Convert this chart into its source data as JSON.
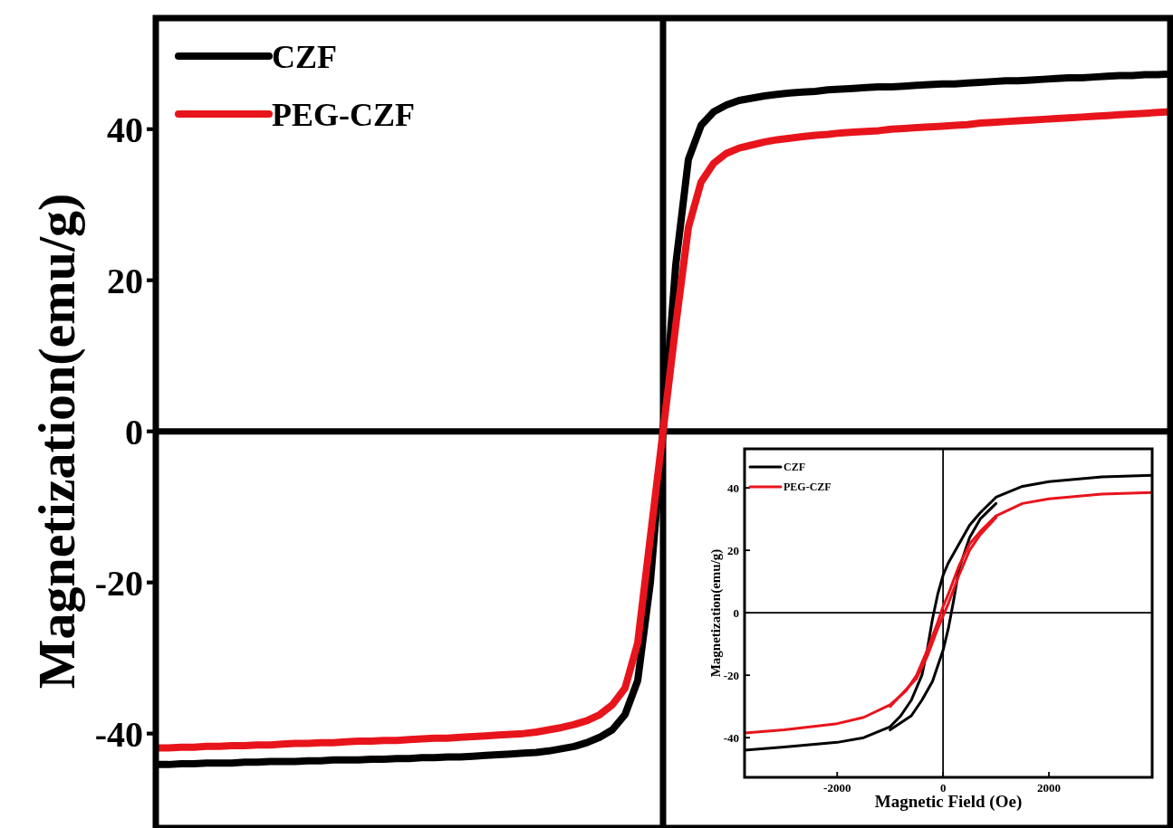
{
  "chart_data": [
    {
      "type": "line",
      "ylabel": "Magnetization(emu/g)",
      "categories": [
        null,
        null,
        null,
        null,
        null,
        null,
        null,
        null,
        null,
        null,
        null,
        null,
        null,
        null,
        null,
        null,
        null,
        null,
        null,
        null,
        null,
        null,
        null,
        null,
        null,
        null,
        null,
        null,
        null,
        null,
        null,
        null,
        null,
        null,
        null,
        null,
        null,
        null,
        null,
        null,
        null,
        null,
        null,
        null,
        null,
        null,
        null,
        null,
        null,
        null,
        null,
        null,
        null,
        null,
        null,
        null,
        null,
        null,
        null,
        null,
        null,
        null,
        null,
        null,
        null,
        null,
        null,
        null,
        null,
        null,
        null,
        null,
        null,
        null,
        null,
        null,
        null,
        null,
        null,
        null,
        null
      ],
      "series": [
        {
          "name": "CZF",
          "color": "#000000",
          "values": [
            -44.1,
            -44.1,
            -44.0,
            -44.0,
            -43.9,
            -43.9,
            -43.9,
            -43.8,
            -43.8,
            -43.7,
            -43.7,
            -43.7,
            -43.6,
            -43.6,
            -43.5,
            -43.5,
            -43.5,
            -43.4,
            -43.4,
            -43.3,
            -43.3,
            -43.2,
            -43.2,
            -43.1,
            -43.1,
            -43.0,
            -42.9,
            -42.8,
            -42.7,
            -42.6,
            -42.5,
            -42.3,
            -42.0,
            -41.7,
            -41.2,
            -40.5,
            -39.5,
            -37.5,
            -33,
            -20,
            0,
            22,
            36,
            40.5,
            42.3,
            43.2,
            43.8,
            44.1,
            44.4,
            44.6,
            44.8,
            44.9,
            45.0,
            45.2,
            45.3,
            45.4,
            45.5,
            45.6,
            45.6,
            45.7,
            45.8,
            45.9,
            46.0,
            46.0,
            46.1,
            46.2,
            46.3,
            46.4,
            46.4,
            46.5,
            46.6,
            46.7,
            46.8,
            46.8,
            46.9,
            47.0,
            47.1,
            47.1,
            47.2,
            47.2,
            47.3
          ]
        },
        {
          "name": "PEG-CZF",
          "color": "#e8141c",
          "values": [
            -41.9,
            -41.9,
            -41.8,
            -41.8,
            -41.7,
            -41.7,
            -41.6,
            -41.6,
            -41.5,
            -41.5,
            -41.4,
            -41.3,
            -41.3,
            -41.2,
            -41.2,
            -41.1,
            -41.0,
            -41.0,
            -40.9,
            -40.9,
            -40.8,
            -40.7,
            -40.6,
            -40.6,
            -40.5,
            -40.4,
            -40.3,
            -40.2,
            -40.1,
            -40.0,
            -39.8,
            -39.5,
            -39.2,
            -38.8,
            -38.3,
            -37.5,
            -36.2,
            -34,
            -28,
            -14,
            0,
            14,
            27,
            33,
            35.5,
            36.8,
            37.5,
            37.9,
            38.3,
            38.6,
            38.8,
            39.0,
            39.2,
            39.3,
            39.5,
            39.6,
            39.7,
            39.8,
            40.0,
            40.1,
            40.2,
            40.3,
            40.4,
            40.5,
            40.6,
            40.8,
            40.9,
            41.0,
            41.1,
            41.2,
            41.3,
            41.4,
            41.5,
            41.6,
            41.7,
            41.8,
            41.9,
            42.0,
            42.1,
            42.2,
            42.3
          ]
        }
      ],
      "ylim": [
        -52.5,
        54.7
      ],
      "yticks": [
        -40,
        -20,
        0,
        20,
        40
      ],
      "tick_labels": "y",
      "legend": "top left",
      "ref_lines": [
        {
          "axis": "y",
          "value": 0
        }
      ]
    },
    {
      "type": "line",
      "xlabel": "Magnetic Field (Oe)",
      "ylabel": "Magnetization(emu/g)",
      "series": [
        {
          "name": "CZF",
          "color": "#000000",
          "x": [
            -3750,
            -3000,
            -2000,
            -1500,
            -1000,
            -800,
            -600,
            -400,
            -300,
            -200,
            -100,
            0,
            100,
            300,
            500,
            700,
            1000,
            1500,
            2000,
            3000,
            3950
          ],
          "values": [
            -44,
            -43,
            -41.5,
            -40,
            -36.5,
            -33,
            -28,
            -20,
            -12,
            -2,
            6,
            12,
            16,
            22,
            28,
            32,
            37,
            40.5,
            42,
            43.5,
            44
          ]
        },
        {
          "color": "#000000",
          "x": [
            -1000,
            -600,
            -400,
            -200,
            0,
            100,
            200,
            300,
            500,
            700,
            1000
          ],
          "values": [
            -37.5,
            -33,
            -28,
            -22,
            -12,
            -5,
            4,
            14,
            24,
            30,
            35
          ]
        },
        {
          "name": "PEG-CZF",
          "color": "#e8141c",
          "x": [
            -3750,
            -3000,
            -2000,
            -1500,
            -1000,
            -700,
            -500,
            -300,
            -100,
            0,
            100,
            300,
            500,
            700,
            1000,
            1500,
            2000,
            3000,
            3950
          ],
          "values": [
            -38.5,
            -37.5,
            -35.5,
            -33.5,
            -29.5,
            -25,
            -20,
            -12,
            -3,
            2,
            6,
            15,
            22,
            26,
            31,
            35,
            36.5,
            38,
            38.5
          ]
        },
        {
          "color": "#e8141c",
          "x": [
            -1000,
            -500,
            -300,
            -100,
            0,
            100,
            300,
            500,
            700,
            1000
          ],
          "values": [
            -30,
            -21,
            -14,
            -5,
            -1,
            3,
            12,
            20,
            25,
            30.5
          ]
        }
      ],
      "xlim": [
        -3750,
        3950
      ],
      "xticks": [
        -2000,
        0,
        2000
      ],
      "ylim": [
        -52.7,
        52.5
      ],
      "yticks": [
        -40,
        -20,
        0,
        20,
        40
      ],
      "legend": "top left",
      "ref_lines": [
        {
          "axis": "y",
          "value": 0
        },
        {
          "axis": "x",
          "value": 0
        }
      ]
    }
  ]
}
